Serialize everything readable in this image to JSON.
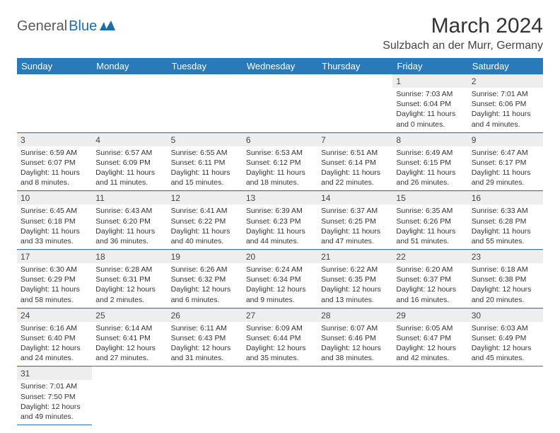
{
  "logo": {
    "general": "General",
    "blue": "Blue"
  },
  "title": "March 2024",
  "location": "Sulzbach an der Murr, Germany",
  "colors": {
    "header_bg": "#2a7ab9",
    "header_text": "#ffffff",
    "daynum_bg": "#eeeeee",
    "border": "#2a7ab9",
    "logo_gray": "#5a5a5a",
    "logo_blue": "#1f6bb0",
    "body_text": "#333333"
  },
  "weekdays": [
    "Sunday",
    "Monday",
    "Tuesday",
    "Wednesday",
    "Thursday",
    "Friday",
    "Saturday"
  ],
  "weeks": [
    [
      null,
      null,
      null,
      null,
      null,
      {
        "num": "1",
        "sunrise": "Sunrise: 7:03 AM",
        "sunset": "Sunset: 6:04 PM",
        "day1": "Daylight: 11 hours",
        "day2": "and 0 minutes."
      },
      {
        "num": "2",
        "sunrise": "Sunrise: 7:01 AM",
        "sunset": "Sunset: 6:06 PM",
        "day1": "Daylight: 11 hours",
        "day2": "and 4 minutes."
      }
    ],
    [
      {
        "num": "3",
        "sunrise": "Sunrise: 6:59 AM",
        "sunset": "Sunset: 6:07 PM",
        "day1": "Daylight: 11 hours",
        "day2": "and 8 minutes."
      },
      {
        "num": "4",
        "sunrise": "Sunrise: 6:57 AM",
        "sunset": "Sunset: 6:09 PM",
        "day1": "Daylight: 11 hours",
        "day2": "and 11 minutes."
      },
      {
        "num": "5",
        "sunrise": "Sunrise: 6:55 AM",
        "sunset": "Sunset: 6:11 PM",
        "day1": "Daylight: 11 hours",
        "day2": "and 15 minutes."
      },
      {
        "num": "6",
        "sunrise": "Sunrise: 6:53 AM",
        "sunset": "Sunset: 6:12 PM",
        "day1": "Daylight: 11 hours",
        "day2": "and 18 minutes."
      },
      {
        "num": "7",
        "sunrise": "Sunrise: 6:51 AM",
        "sunset": "Sunset: 6:14 PM",
        "day1": "Daylight: 11 hours",
        "day2": "and 22 minutes."
      },
      {
        "num": "8",
        "sunrise": "Sunrise: 6:49 AM",
        "sunset": "Sunset: 6:15 PM",
        "day1": "Daylight: 11 hours",
        "day2": "and 26 minutes."
      },
      {
        "num": "9",
        "sunrise": "Sunrise: 6:47 AM",
        "sunset": "Sunset: 6:17 PM",
        "day1": "Daylight: 11 hours",
        "day2": "and 29 minutes."
      }
    ],
    [
      {
        "num": "10",
        "sunrise": "Sunrise: 6:45 AM",
        "sunset": "Sunset: 6:18 PM",
        "day1": "Daylight: 11 hours",
        "day2": "and 33 minutes."
      },
      {
        "num": "11",
        "sunrise": "Sunrise: 6:43 AM",
        "sunset": "Sunset: 6:20 PM",
        "day1": "Daylight: 11 hours",
        "day2": "and 36 minutes."
      },
      {
        "num": "12",
        "sunrise": "Sunrise: 6:41 AM",
        "sunset": "Sunset: 6:22 PM",
        "day1": "Daylight: 11 hours",
        "day2": "and 40 minutes."
      },
      {
        "num": "13",
        "sunrise": "Sunrise: 6:39 AM",
        "sunset": "Sunset: 6:23 PM",
        "day1": "Daylight: 11 hours",
        "day2": "and 44 minutes."
      },
      {
        "num": "14",
        "sunrise": "Sunrise: 6:37 AM",
        "sunset": "Sunset: 6:25 PM",
        "day1": "Daylight: 11 hours",
        "day2": "and 47 minutes."
      },
      {
        "num": "15",
        "sunrise": "Sunrise: 6:35 AM",
        "sunset": "Sunset: 6:26 PM",
        "day1": "Daylight: 11 hours",
        "day2": "and 51 minutes."
      },
      {
        "num": "16",
        "sunrise": "Sunrise: 6:33 AM",
        "sunset": "Sunset: 6:28 PM",
        "day1": "Daylight: 11 hours",
        "day2": "and 55 minutes."
      }
    ],
    [
      {
        "num": "17",
        "sunrise": "Sunrise: 6:30 AM",
        "sunset": "Sunset: 6:29 PM",
        "day1": "Daylight: 11 hours",
        "day2": "and 58 minutes."
      },
      {
        "num": "18",
        "sunrise": "Sunrise: 6:28 AM",
        "sunset": "Sunset: 6:31 PM",
        "day1": "Daylight: 12 hours",
        "day2": "and 2 minutes."
      },
      {
        "num": "19",
        "sunrise": "Sunrise: 6:26 AM",
        "sunset": "Sunset: 6:32 PM",
        "day1": "Daylight: 12 hours",
        "day2": "and 6 minutes."
      },
      {
        "num": "20",
        "sunrise": "Sunrise: 6:24 AM",
        "sunset": "Sunset: 6:34 PM",
        "day1": "Daylight: 12 hours",
        "day2": "and 9 minutes."
      },
      {
        "num": "21",
        "sunrise": "Sunrise: 6:22 AM",
        "sunset": "Sunset: 6:35 PM",
        "day1": "Daylight: 12 hours",
        "day2": "and 13 minutes."
      },
      {
        "num": "22",
        "sunrise": "Sunrise: 6:20 AM",
        "sunset": "Sunset: 6:37 PM",
        "day1": "Daylight: 12 hours",
        "day2": "and 16 minutes."
      },
      {
        "num": "23",
        "sunrise": "Sunrise: 6:18 AM",
        "sunset": "Sunset: 6:38 PM",
        "day1": "Daylight: 12 hours",
        "day2": "and 20 minutes."
      }
    ],
    [
      {
        "num": "24",
        "sunrise": "Sunrise: 6:16 AM",
        "sunset": "Sunset: 6:40 PM",
        "day1": "Daylight: 12 hours",
        "day2": "and 24 minutes."
      },
      {
        "num": "25",
        "sunrise": "Sunrise: 6:14 AM",
        "sunset": "Sunset: 6:41 PM",
        "day1": "Daylight: 12 hours",
        "day2": "and 27 minutes."
      },
      {
        "num": "26",
        "sunrise": "Sunrise: 6:11 AM",
        "sunset": "Sunset: 6:43 PM",
        "day1": "Daylight: 12 hours",
        "day2": "and 31 minutes."
      },
      {
        "num": "27",
        "sunrise": "Sunrise: 6:09 AM",
        "sunset": "Sunset: 6:44 PM",
        "day1": "Daylight: 12 hours",
        "day2": "and 35 minutes."
      },
      {
        "num": "28",
        "sunrise": "Sunrise: 6:07 AM",
        "sunset": "Sunset: 6:46 PM",
        "day1": "Daylight: 12 hours",
        "day2": "and 38 minutes."
      },
      {
        "num": "29",
        "sunrise": "Sunrise: 6:05 AM",
        "sunset": "Sunset: 6:47 PM",
        "day1": "Daylight: 12 hours",
        "day2": "and 42 minutes."
      },
      {
        "num": "30",
        "sunrise": "Sunrise: 6:03 AM",
        "sunset": "Sunset: 6:49 PM",
        "day1": "Daylight: 12 hours",
        "day2": "and 45 minutes."
      }
    ],
    [
      {
        "num": "31",
        "sunrise": "Sunrise: 7:01 AM",
        "sunset": "Sunset: 7:50 PM",
        "day1": "Daylight: 12 hours",
        "day2": "and 49 minutes."
      },
      null,
      null,
      null,
      null,
      null,
      null
    ]
  ]
}
